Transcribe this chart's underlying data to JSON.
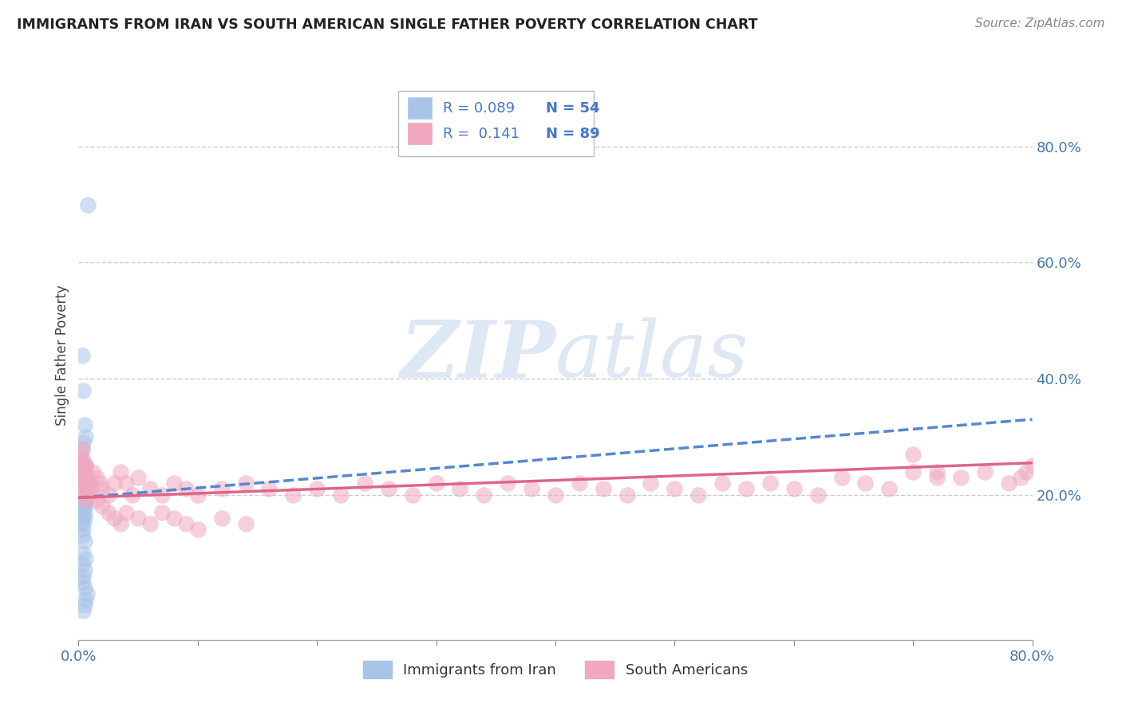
{
  "title": "IMMIGRANTS FROM IRAN VS SOUTH AMERICAN SINGLE FATHER POVERTY CORRELATION CHART",
  "source": "Source: ZipAtlas.com",
  "ylabel": "Single Father Poverty",
  "ytick_labels": [
    "20.0%",
    "40.0%",
    "60.0%",
    "80.0%"
  ],
  "ytick_values": [
    0.2,
    0.4,
    0.6,
    0.8
  ],
  "xlim": [
    0.0,
    0.8
  ],
  "ylim": [
    -0.05,
    0.93
  ],
  "iran_color": "#a8c4e8",
  "sa_color": "#f0a8c0",
  "iran_line_color": "#5588cc",
  "sa_line_color": "#dd6688",
  "watermark_color": "#d0dff0",
  "iran_trend_start": 0.195,
  "iran_trend_end": 0.33,
  "sa_trend_start": 0.195,
  "sa_trend_end": 0.255,
  "iran_x": [
    0.008,
    0.003,
    0.004,
    0.005,
    0.006,
    0.002,
    0.004,
    0.003,
    0.005,
    0.004,
    0.006,
    0.003,
    0.005,
    0.007,
    0.004,
    0.003,
    0.006,
    0.005,
    0.004,
    0.003,
    0.005,
    0.006,
    0.004,
    0.003,
    0.005,
    0.004,
    0.003,
    0.002,
    0.004,
    0.003,
    0.005,
    0.004,
    0.003,
    0.002,
    0.004,
    0.003,
    0.005,
    0.004,
    0.006,
    0.003,
    0.005,
    0.004,
    0.003,
    0.005,
    0.007,
    0.006,
    0.005,
    0.004,
    0.003,
    0.004,
    0.005,
    0.003,
    0.004,
    0.005
  ],
  "iran_y": [
    0.7,
    0.44,
    0.38,
    0.32,
    0.3,
    0.26,
    0.25,
    0.22,
    0.2,
    0.19,
    0.18,
    0.18,
    0.17,
    0.22,
    0.29,
    0.28,
    0.25,
    0.23,
    0.22,
    0.21,
    0.2,
    0.19,
    0.18,
    0.17,
    0.16,
    0.15,
    0.22,
    0.21,
    0.2,
    0.2,
    0.19,
    0.18,
    0.16,
    0.15,
    0.14,
    0.13,
    0.12,
    0.1,
    0.09,
    0.08,
    0.07,
    0.06,
    0.05,
    0.04,
    0.03,
    0.02,
    0.01,
    0.0,
    0.24,
    0.23,
    0.22,
    0.21,
    0.2,
    0.19
  ],
  "sa_x": [
    0.002,
    0.003,
    0.004,
    0.005,
    0.006,
    0.007,
    0.008,
    0.01,
    0.012,
    0.015,
    0.018,
    0.02,
    0.025,
    0.03,
    0.035,
    0.04,
    0.045,
    0.05,
    0.06,
    0.07,
    0.08,
    0.09,
    0.1,
    0.12,
    0.14,
    0.16,
    0.18,
    0.2,
    0.22,
    0.24,
    0.26,
    0.28,
    0.3,
    0.32,
    0.34,
    0.36,
    0.38,
    0.4,
    0.42,
    0.44,
    0.46,
    0.48,
    0.5,
    0.52,
    0.54,
    0.56,
    0.58,
    0.6,
    0.62,
    0.64,
    0.66,
    0.68,
    0.7,
    0.72,
    0.003,
    0.004,
    0.005,
    0.006,
    0.007,
    0.008,
    0.01,
    0.012,
    0.015,
    0.02,
    0.025,
    0.03,
    0.035,
    0.04,
    0.05,
    0.06,
    0.07,
    0.08,
    0.09,
    0.1,
    0.12,
    0.14,
    0.003,
    0.004,
    0.005,
    0.006,
    0.7,
    0.72,
    0.74,
    0.76,
    0.78,
    0.79,
    0.795,
    0.8,
    0.002
  ],
  "sa_y": [
    0.26,
    0.24,
    0.22,
    0.23,
    0.25,
    0.21,
    0.2,
    0.22,
    0.24,
    0.23,
    0.22,
    0.21,
    0.2,
    0.22,
    0.24,
    0.22,
    0.2,
    0.23,
    0.21,
    0.2,
    0.22,
    0.21,
    0.2,
    0.21,
    0.22,
    0.21,
    0.2,
    0.21,
    0.2,
    0.22,
    0.21,
    0.2,
    0.22,
    0.21,
    0.2,
    0.22,
    0.21,
    0.2,
    0.22,
    0.21,
    0.2,
    0.22,
    0.21,
    0.2,
    0.22,
    0.21,
    0.22,
    0.21,
    0.2,
    0.23,
    0.22,
    0.21,
    0.24,
    0.23,
    0.28,
    0.26,
    0.25,
    0.24,
    0.23,
    0.22,
    0.21,
    0.2,
    0.19,
    0.18,
    0.17,
    0.16,
    0.15,
    0.17,
    0.16,
    0.15,
    0.17,
    0.16,
    0.15,
    0.14,
    0.16,
    0.15,
    0.21,
    0.22,
    0.2,
    0.19,
    0.27,
    0.24,
    0.23,
    0.24,
    0.22,
    0.23,
    0.24,
    0.25,
    0.27
  ]
}
